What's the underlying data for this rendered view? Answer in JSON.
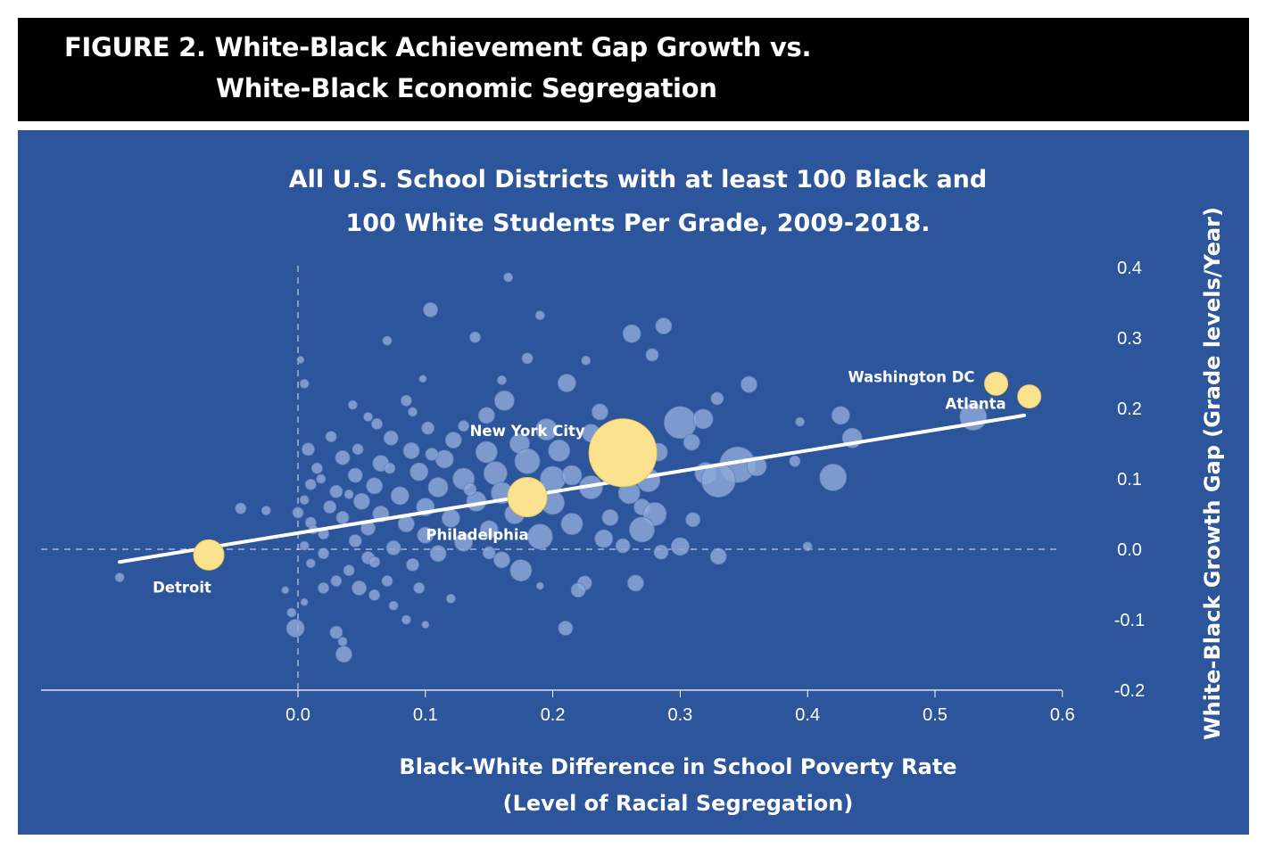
{
  "figure": {
    "label_line1": "FIGURE 2. White-Black Achievement Gap Growth vs.",
    "label_line2": "White-Black Economic Segregation"
  },
  "colors": {
    "panel": "#2c559b",
    "bubble": "#8ea9d8",
    "highlight": "#fbe28f",
    "trend": "#ffffff"
  },
  "chart_data": {
    "type": "scatter",
    "title_lines": [
      "All U.S. School Districts with at least 100 Black and",
      "100 White Students Per Grade, 2009-2018."
    ],
    "xlabel_lines": [
      "Black-White Difference in School Poverty Rate",
      "(Level of Racial Segregation)"
    ],
    "ylabel": "White-Black Growth Gap (Grade levels/Year)",
    "xlim": [
      -0.2,
      0.6
    ],
    "ylim": [
      -0.2,
      0.4
    ],
    "x_ticks": [
      "0.0",
      "0.1",
      "0.2",
      "0.3",
      "0.4",
      "0.5",
      "0.6"
    ],
    "y_ticks": [
      "0.4",
      "0.3",
      "0.2",
      "0.1",
      "0.0",
      "-0.1",
      "-0.2"
    ],
    "trend_line": {
      "x": [
        -0.14,
        0.57
      ],
      "y": [
        -0.018,
        0.19
      ]
    },
    "highlighted": [
      {
        "label": "Detroit",
        "x": -0.07,
        "y": -0.008,
        "r": 17
      },
      {
        "label": "Philadelphia",
        "x": 0.18,
        "y": 0.074,
        "r": 22
      },
      {
        "label": "New York City",
        "x": 0.255,
        "y": 0.137,
        "r": 38
      },
      {
        "label": "Washington DC",
        "x": 0.548,
        "y": 0.235,
        "r": 13
      },
      {
        "label": "Atlanta",
        "x": 0.574,
        "y": 0.217,
        "r": 13
      }
    ],
    "districts": [
      {
        "x": 0.165,
        "y": 0.386,
        "r": 5
      },
      {
        "x": 0.104,
        "y": 0.34,
        "r": 8
      },
      {
        "x": 0.19,
        "y": 0.332,
        "r": 5
      },
      {
        "x": 0.287,
        "y": 0.317,
        "r": 9
      },
      {
        "x": 0.262,
        "y": 0.306,
        "r": 10
      },
      {
        "x": 0.139,
        "y": 0.301,
        "r": 6
      },
      {
        "x": 0.07,
        "y": 0.296,
        "r": 5
      },
      {
        "x": 0.278,
        "y": 0.276,
        "r": 7
      },
      {
        "x": 0.18,
        "y": 0.271,
        "r": 6
      },
      {
        "x": 0.002,
        "y": 0.269,
        "r": 4
      },
      {
        "x": 0.226,
        "y": 0.268,
        "r": 5
      },
      {
        "x": 0.098,
        "y": 0.242,
        "r": 4
      },
      {
        "x": 0.211,
        "y": 0.236,
        "r": 10
      },
      {
        "x": 0.354,
        "y": 0.234,
        "r": 9
      },
      {
        "x": 0.005,
        "y": 0.235,
        "r": 5
      },
      {
        "x": 0.329,
        "y": 0.214,
        "r": 7
      },
      {
        "x": 0.162,
        "y": 0.211,
        "r": 11
      },
      {
        "x": 0.085,
        "y": 0.211,
        "r": 6
      },
      {
        "x": 0.043,
        "y": 0.205,
        "r": 5
      },
      {
        "x": 0.237,
        "y": 0.195,
        "r": 9
      },
      {
        "x": 0.148,
        "y": 0.19,
        "r": 9
      },
      {
        "x": 0.426,
        "y": 0.19,
        "r": 10
      },
      {
        "x": 0.53,
        "y": 0.188,
        "r": 15
      },
      {
        "x": 0.3,
        "y": 0.18,
        "r": 18
      },
      {
        "x": 0.318,
        "y": 0.185,
        "r": 11
      },
      {
        "x": 0.394,
        "y": 0.181,
        "r": 5
      },
      {
        "x": 0.062,
        "y": 0.178,
        "r": 6
      },
      {
        "x": 0.102,
        "y": 0.172,
        "r": 7
      },
      {
        "x": 0.195,
        "y": 0.17,
        "r": 12
      },
      {
        "x": 0.23,
        "y": 0.165,
        "r": 10
      },
      {
        "x": 0.026,
        "y": 0.16,
        "r": 6
      },
      {
        "x": 0.073,
        "y": 0.158,
        "r": 8
      },
      {
        "x": 0.122,
        "y": 0.155,
        "r": 9
      },
      {
        "x": 0.435,
        "y": 0.158,
        "r": 11
      },
      {
        "x": 0.309,
        "y": 0.152,
        "r": 9
      },
      {
        "x": 0.174,
        "y": 0.15,
        "r": 11
      },
      {
        "x": 0.008,
        "y": 0.142,
        "r": 7
      },
      {
        "x": 0.047,
        "y": 0.142,
        "r": 6
      },
      {
        "x": 0.089,
        "y": 0.14,
        "r": 9
      },
      {
        "x": 0.148,
        "y": 0.138,
        "r": 12
      },
      {
        "x": 0.205,
        "y": 0.14,
        "r": 12
      },
      {
        "x": 0.283,
        "y": 0.138,
        "r": 10
      },
      {
        "x": 0.035,
        "y": 0.13,
        "r": 8
      },
      {
        "x": 0.115,
        "y": 0.128,
        "r": 10
      },
      {
        "x": 0.18,
        "y": 0.125,
        "r": 14
      },
      {
        "x": 0.39,
        "y": 0.125,
        "r": 6
      },
      {
        "x": 0.065,
        "y": 0.122,
        "r": 9
      },
      {
        "x": 0.24,
        "y": 0.12,
        "r": 13
      },
      {
        "x": 0.345,
        "y": 0.12,
        "r": 20
      },
      {
        "x": 0.36,
        "y": 0.118,
        "r": 11
      },
      {
        "x": 0.015,
        "y": 0.115,
        "r": 6
      },
      {
        "x": 0.095,
        "y": 0.11,
        "r": 10
      },
      {
        "x": 0.155,
        "y": 0.108,
        "r": 13
      },
      {
        "x": 0.32,
        "y": 0.108,
        "r": 12
      },
      {
        "x": 0.045,
        "y": 0.105,
        "r": 8
      },
      {
        "x": 0.42,
        "y": 0.102,
        "r": 15
      },
      {
        "x": 0.13,
        "y": 0.1,
        "r": 12
      },
      {
        "x": 0.2,
        "y": 0.1,
        "r": 14
      },
      {
        "x": 0.275,
        "y": 0.098,
        "r": 13
      },
      {
        "x": 0.33,
        "y": 0.098,
        "r": 19
      },
      {
        "x": 0.01,
        "y": 0.092,
        "r": 6
      },
      {
        "x": 0.06,
        "y": 0.09,
        "r": 9
      },
      {
        "x": 0.11,
        "y": 0.088,
        "r": 11
      },
      {
        "x": 0.23,
        "y": 0.088,
        "r": 13
      },
      {
        "x": 0.03,
        "y": 0.082,
        "r": 7
      },
      {
        "x": 0.16,
        "y": 0.08,
        "r": 12
      },
      {
        "x": 0.26,
        "y": 0.08,
        "r": 12
      },
      {
        "x": 0.08,
        "y": 0.076,
        "r": 10
      },
      {
        "x": 0.005,
        "y": 0.07,
        "r": 5
      },
      {
        "x": 0.05,
        "y": 0.068,
        "r": 9
      },
      {
        "x": 0.14,
        "y": 0.068,
        "r": 11
      },
      {
        "x": 0.2,
        "y": 0.066,
        "r": 13
      },
      {
        "x": 0.025,
        "y": 0.06,
        "r": 7
      },
      {
        "x": 0.1,
        "y": 0.06,
        "r": 10
      },
      {
        "x": 0.27,
        "y": 0.06,
        "r": 9
      },
      {
        "x": -0.045,
        "y": 0.058,
        "r": 6
      },
      {
        "x": -0.025,
        "y": 0.055,
        "r": 5
      },
      {
        "x": 0.0,
        "y": 0.052,
        "r": 6
      },
      {
        "x": 0.065,
        "y": 0.05,
        "r": 9
      },
      {
        "x": 0.17,
        "y": 0.05,
        "r": 11
      },
      {
        "x": 0.28,
        "y": 0.05,
        "r": 13
      },
      {
        "x": 0.035,
        "y": 0.045,
        "r": 7
      },
      {
        "x": 0.12,
        "y": 0.044,
        "r": 10
      },
      {
        "x": 0.31,
        "y": 0.042,
        "r": 8
      },
      {
        "x": 0.01,
        "y": 0.038,
        "r": 6
      },
      {
        "x": 0.085,
        "y": 0.036,
        "r": 9
      },
      {
        "x": 0.215,
        "y": 0.036,
        "r": 12
      },
      {
        "x": 0.055,
        "y": 0.03,
        "r": 8
      },
      {
        "x": 0.15,
        "y": 0.028,
        "r": 10
      },
      {
        "x": 0.27,
        "y": 0.028,
        "r": 14
      },
      {
        "x": 0.02,
        "y": 0.022,
        "r": 6
      },
      {
        "x": 0.1,
        "y": 0.02,
        "r": 9
      },
      {
        "x": 0.19,
        "y": 0.018,
        "r": 14
      },
      {
        "x": 0.24,
        "y": 0.015,
        "r": 10
      },
      {
        "x": 0.045,
        "y": 0.012,
        "r": 7
      },
      {
        "x": 0.13,
        "y": 0.01,
        "r": 10
      },
      {
        "x": 0.3,
        "y": 0.004,
        "r": 10
      },
      {
        "x": 0.4,
        "y": 0.004,
        "r": 5
      },
      {
        "x": 0.005,
        "y": 0.005,
        "r": 5
      },
      {
        "x": 0.075,
        "y": 0.002,
        "r": 8
      },
      {
        "x": 0.02,
        "y": -0.006,
        "r": 6
      },
      {
        "x": 0.11,
        "y": -0.006,
        "r": 9
      },
      {
        "x": 0.285,
        "y": -0.004,
        "r": 8
      },
      {
        "x": 0.33,
        "y": -0.01,
        "r": 9
      },
      {
        "x": 0.055,
        "y": -0.012,
        "r": 7
      },
      {
        "x": 0.16,
        "y": -0.015,
        "r": 9
      },
      {
        "x": 0.01,
        "y": -0.02,
        "r": 5
      },
      {
        "x": 0.09,
        "y": -0.022,
        "r": 7
      },
      {
        "x": 0.04,
        "y": -0.03,
        "r": 6
      },
      {
        "x": 0.175,
        "y": -0.03,
        "r": 12
      },
      {
        "x": 0.03,
        "y": -0.045,
        "r": 6
      },
      {
        "x": 0.07,
        "y": -0.045,
        "r": 6
      },
      {
        "x": 0.225,
        "y": -0.048,
        "r": 8
      },
      {
        "x": 0.265,
        "y": -0.048,
        "r": 9
      },
      {
        "x": 0.048,
        "y": -0.055,
        "r": 8
      },
      {
        "x": 0.19,
        "y": -0.052,
        "r": 4
      },
      {
        "x": 0.02,
        "y": -0.055,
        "r": 6
      },
      {
        "x": 0.095,
        "y": -0.055,
        "r": 6
      },
      {
        "x": 0.22,
        "y": -0.058,
        "r": 8
      },
      {
        "x": -0.01,
        "y": -0.058,
        "r": 4
      },
      {
        "x": 0.06,
        "y": -0.065,
        "r": 6
      },
      {
        "x": 0.12,
        "y": -0.07,
        "r": 5
      },
      {
        "x": 0.075,
        "y": -0.08,
        "r": 5
      },
      {
        "x": -0.005,
        "y": -0.09,
        "r": 5
      },
      {
        "x": 0.085,
        "y": -0.1,
        "r": 5
      },
      {
        "x": 0.1,
        "y": -0.107,
        "r": 4
      },
      {
        "x": -0.002,
        "y": -0.112,
        "r": 10
      },
      {
        "x": 0.21,
        "y": -0.112,
        "r": 8
      },
      {
        "x": 0.03,
        "y": -0.118,
        "r": 7
      },
      {
        "x": 0.035,
        "y": -0.131,
        "r": 5
      },
      {
        "x": 0.036,
        "y": -0.149,
        "r": 9
      },
      {
        "x": -0.14,
        "y": -0.04,
        "r": 5
      },
      {
        "x": 0.005,
        "y": -0.075,
        "r": 4
      },
      {
        "x": 0.13,
        "y": 0.175,
        "r": 6
      },
      {
        "x": 0.09,
        "y": 0.195,
        "r": 5
      },
      {
        "x": 0.16,
        "y": 0.24,
        "r": 5
      },
      {
        "x": 0.055,
        "y": 0.188,
        "r": 5
      },
      {
        "x": 0.018,
        "y": 0.1,
        "r": 5
      },
      {
        "x": 0.04,
        "y": 0.078,
        "r": 5
      },
      {
        "x": 0.072,
        "y": 0.115,
        "r": 6
      },
      {
        "x": 0.105,
        "y": 0.135,
        "r": 7
      },
      {
        "x": 0.135,
        "y": 0.085,
        "r": 7
      },
      {
        "x": 0.012,
        "y": 0.028,
        "r": 5
      },
      {
        "x": 0.06,
        "y": -0.018,
        "r": 6
      },
      {
        "x": 0.15,
        "y": -0.005,
        "r": 7
      },
      {
        "x": 0.245,
        "y": 0.045,
        "r": 9
      },
      {
        "x": 0.255,
        "y": 0.005,
        "r": 8
      },
      {
        "x": 0.215,
        "y": 0.105,
        "r": 11
      }
    ]
  }
}
